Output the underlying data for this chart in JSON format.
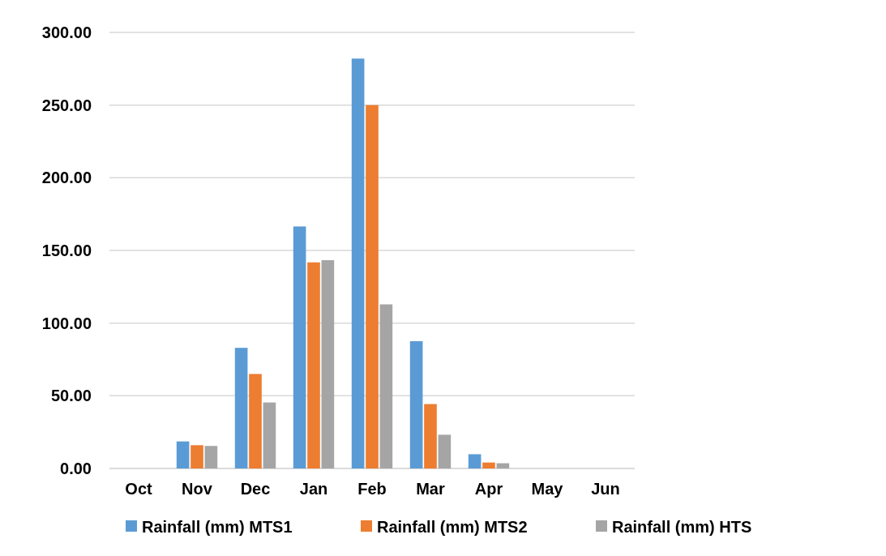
{
  "chart_data": {
    "type": "bar",
    "categories": [
      "Oct",
      "Nov",
      "Dec",
      "Jan",
      "Feb",
      "Mar",
      "Apr",
      "May",
      "Jun"
    ],
    "series": [
      {
        "name": "Rainfall (mm) MTS1",
        "color": "#5b9bd5",
        "values": [
          0,
          18.6,
          83,
          166.5,
          282,
          87.6,
          9.8,
          0,
          0
        ]
      },
      {
        "name": "Rainfall (mm) MTS2",
        "color": "#ed7d31",
        "values": [
          0,
          16,
          65,
          141.8,
          250,
          44.3,
          4.1,
          0,
          0
        ]
      },
      {
        "name": "Rainfall (mm) HTS",
        "color": "#a5a5a5",
        "values": [
          0,
          15.5,
          45.4,
          143.3,
          112.9,
          23.2,
          3.6,
          0,
          0
        ]
      }
    ],
    "ylim": [
      0,
      300
    ],
    "yticks": [
      {
        "value": 0,
        "label": "0.00"
      },
      {
        "value": 50,
        "label": "50.00"
      },
      {
        "value": 100,
        "label": "100.00"
      },
      {
        "value": 150,
        "label": "150.00"
      },
      {
        "value": 200,
        "label": "200.00"
      },
      {
        "value": 250,
        "label": "250.00"
      },
      {
        "value": 300,
        "label": "300.00"
      }
    ],
    "grid": "y",
    "legend": "bottom"
  }
}
